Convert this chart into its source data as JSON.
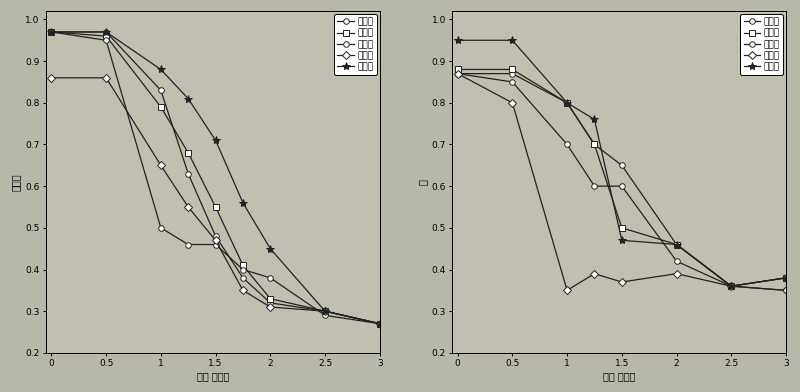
{
  "left_plot": {
    "x": [
      0,
      0.5,
      1.0,
      1.25,
      1.5,
      1.75,
      2.0,
      2.5,
      3.0
    ],
    "series": {
      "方法一": {
        "x": [
          0,
          0.5,
          1.0,
          1.25,
          1.5,
          1.75,
          2.0,
          2.5,
          3.0
        ],
        "y": [
          0.97,
          0.97,
          0.83,
          0.63,
          0.48,
          0.38,
          0.32,
          0.3,
          0.27
        ]
      },
      "方法二": {
        "x": [
          0,
          0.5,
          1.0,
          1.25,
          1.5,
          1.75,
          2.0,
          2.5,
          3.0
        ],
        "y": [
          0.97,
          0.96,
          0.79,
          0.68,
          0.55,
          0.41,
          0.33,
          0.3,
          0.27
        ]
      },
      "方法三": {
        "x": [
          0,
          0.5,
          1.0,
          1.25,
          1.5,
          1.75,
          2.0,
          2.5,
          3.0
        ],
        "y": [
          0.97,
          0.95,
          0.5,
          0.46,
          0.46,
          0.4,
          0.38,
          0.29,
          0.27
        ]
      },
      "方法四": {
        "x": [
          0,
          0.5,
          1.0,
          1.25,
          1.5,
          1.75,
          2.0,
          2.5,
          3.0
        ],
        "y": [
          0.86,
          0.86,
          0.65,
          0.55,
          0.47,
          0.35,
          0.31,
          0.3,
          0.27
        ]
      },
      "方法五": {
        "x": [
          0,
          0.5,
          1.0,
          1.25,
          1.5,
          1.75,
          2.0,
          2.5,
          3.0
        ],
        "y": [
          0.97,
          0.97,
          0.88,
          0.81,
          0.71,
          0.56,
          0.45,
          0.3,
          0.27
        ]
      }
    },
    "markers": [
      "o",
      "s",
      "o",
      "D",
      "*"
    ],
    "ylabel": "识别率",
    "xlabel": "方差 阈值阶",
    "ylim": [
      0.2,
      1.02
    ],
    "xlim": [
      -0.05,
      3.0
    ],
    "xticks": [
      0,
      0.5,
      1.0,
      1.5,
      2.0,
      2.5,
      3.0
    ],
    "yticks": [
      0.2,
      0.3,
      0.4,
      0.5,
      0.6,
      0.7,
      0.8,
      0.9,
      1.0
    ]
  },
  "right_plot": {
    "series": {
      "方法一": {
        "x": [
          0,
          0.5,
          1.0,
          1.25,
          1.5,
          2.0,
          2.5,
          3.0
        ],
        "y": [
          0.87,
          0.87,
          0.8,
          0.7,
          0.65,
          0.46,
          0.36,
          0.35
        ]
      },
      "方法二": {
        "x": [
          0,
          0.5,
          1.0,
          1.25,
          1.5,
          2.0,
          2.5,
          3.0
        ],
        "y": [
          0.88,
          0.88,
          0.8,
          0.7,
          0.5,
          0.46,
          0.36,
          0.38
        ]
      },
      "方法三": {
        "x": [
          0,
          0.5,
          1.0,
          1.25,
          1.5,
          2.0,
          2.5,
          3.0
        ],
        "y": [
          0.87,
          0.85,
          0.7,
          0.6,
          0.6,
          0.42,
          0.36,
          0.35
        ]
      },
      "方法四": {
        "x": [
          0,
          0.5,
          1.0,
          1.25,
          1.5,
          2.0,
          2.5,
          3.0
        ],
        "y": [
          0.87,
          0.8,
          0.35,
          0.39,
          0.37,
          0.39,
          0.36,
          0.38
        ]
      },
      "方法五": {
        "x": [
          0,
          0.5,
          1.0,
          1.25,
          1.5,
          2.0,
          2.5,
          3.0
        ],
        "y": [
          0.95,
          0.95,
          0.8,
          0.76,
          0.47,
          0.46,
          0.36,
          0.38
        ]
      }
    },
    "markers": [
      "o",
      "s",
      "o",
      "D",
      "*"
    ],
    "ylabel": "率",
    "xlabel": "方差 阈值阶",
    "ylim": [
      0.2,
      1.02
    ],
    "xlim": [
      -0.05,
      3.0
    ],
    "xticks": [
      0,
      0.5,
      1.0,
      1.5,
      2.0,
      2.5,
      3.0
    ],
    "yticks": [
      0.2,
      0.3,
      0.4,
      0.5,
      0.6,
      0.7,
      0.8,
      0.9,
      1.0
    ]
  },
  "legend_labels": [
    "方法一",
    "方法二",
    "方法三",
    "方法四",
    "方法五"
  ],
  "line_color": "#222222",
  "background_color": "#b8b8a8",
  "plot_bg_color": "#c0bfb0",
  "font_size": 7
}
